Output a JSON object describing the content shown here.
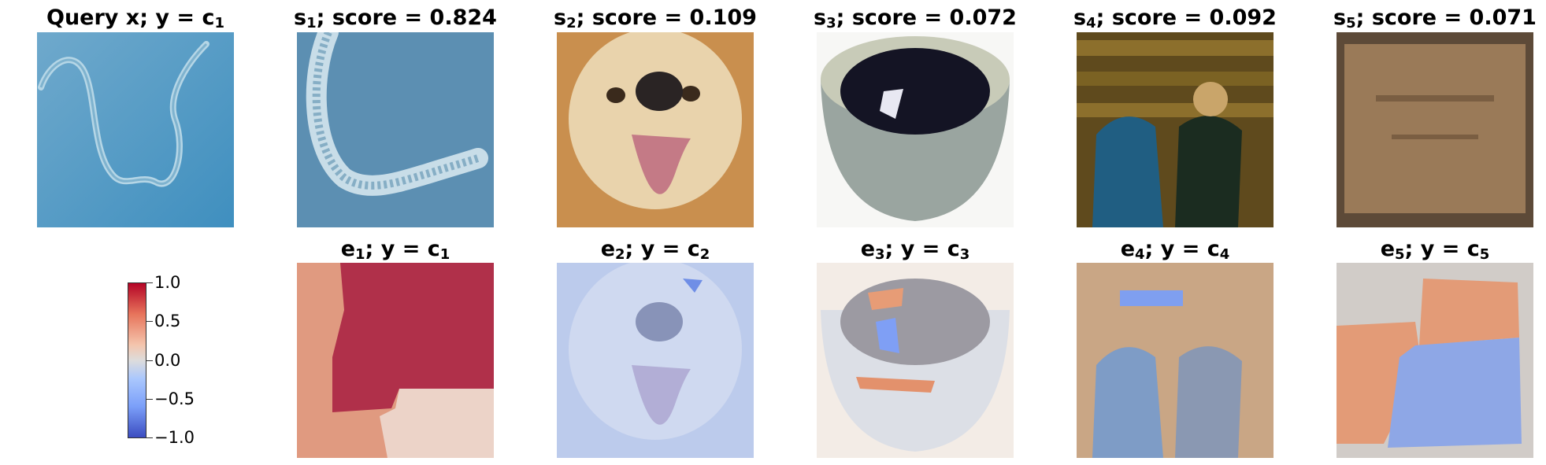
{
  "query": {
    "label": "Query x; y = ",
    "class": "c",
    "class_idx": "1"
  },
  "supports": [
    {
      "s": "s",
      "idx": "1",
      "score_text": "; score = 0.824",
      "score": 0.824
    },
    {
      "s": "s",
      "idx": "2",
      "score_text": "; score = 0.109",
      "score": 0.109
    },
    {
      "s": "s",
      "idx": "3",
      "score_text": "; score = 0.072",
      "score": 0.072
    },
    {
      "s": "s",
      "idx": "4",
      "score_text": "; score = 0.092",
      "score": 0.092
    },
    {
      "s": "s",
      "idx": "5",
      "score_text": "; score = 0.071",
      "score": 0.071
    }
  ],
  "explanations": [
    {
      "e": "e",
      "idx": "1",
      "label": "; y = ",
      "c": "c",
      "cidx": "1"
    },
    {
      "e": "e",
      "idx": "2",
      "label": "; y = ",
      "c": "c",
      "cidx": "2"
    },
    {
      "e": "e",
      "idx": "3",
      "label": "; y = ",
      "c": "c",
      "cidx": "3"
    },
    {
      "e": "e",
      "idx": "4",
      "label": "; y = ",
      "c": "c",
      "cidx": "4"
    },
    {
      "e": "e",
      "idx": "5",
      "label": "; y = ",
      "c": "c",
      "cidx": "5"
    }
  ],
  "colorbar": {
    "ticks": [
      "1.0",
      "0.5",
      "0.0",
      "−0.5",
      "−1.0"
    ],
    "colormap": "coolwarm",
    "range": [
      -1.0,
      1.0
    ]
  },
  "colors": {
    "positive": "#b40426",
    "negative": "#3b4cc0",
    "neutral": "#dddcdc"
  }
}
